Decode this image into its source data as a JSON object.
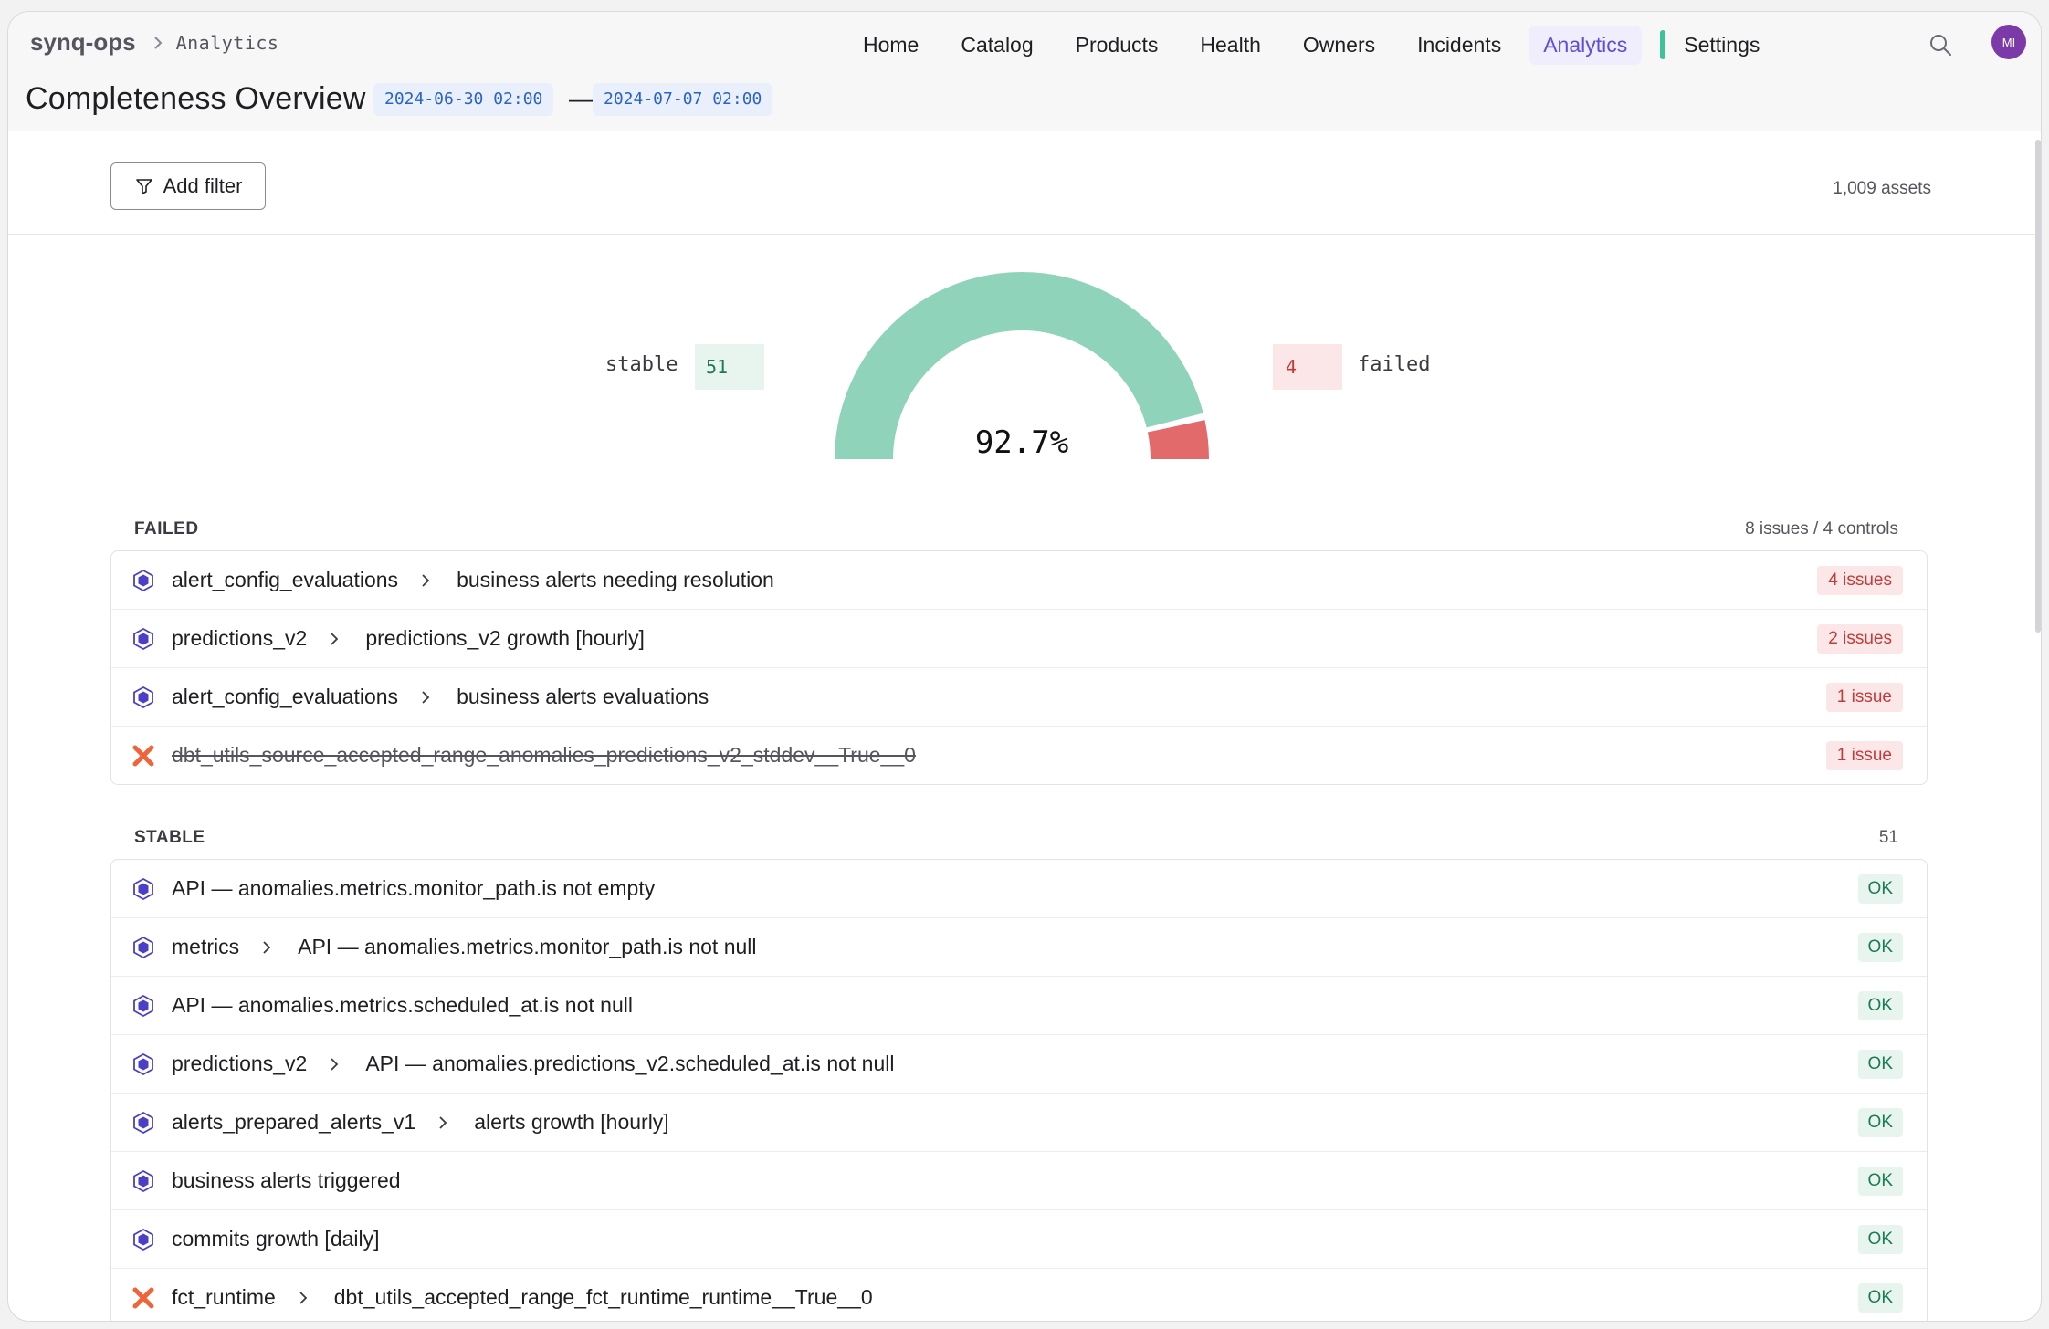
{
  "header": {
    "org": "synq-ops",
    "breadcrumb_current": "Analytics",
    "title": "Completeness Overview",
    "date_start": "2024-06-30 02:00",
    "date_separator": "—",
    "date_end": "2024-07-07 02:00",
    "avatar_initials": "MI"
  },
  "nav": {
    "home": "Home",
    "catalog": "Catalog",
    "products": "Products",
    "health": "Health",
    "owners": "Owners",
    "incidents": "Incidents",
    "analytics": "Analytics",
    "settings": "Settings"
  },
  "toolbar": {
    "add_filter": "Add filter",
    "asset_count": "1,009 assets"
  },
  "summary": {
    "stable_label": "stable",
    "stable_count": "51",
    "failed_label": "failed",
    "failed_count": "4",
    "percentage": "92.7%",
    "percentage_value": 0.927
  },
  "failed": {
    "title": "FAILED",
    "meta": "8 issues / 4 controls",
    "rows": [
      {
        "parent": "alert_config_evaluations",
        "name": "business alerts needing resolution",
        "badge": "4 issues",
        "icon": "hexagon-icon"
      },
      {
        "parent": "predictions_v2",
        "name": "predictions_v2 growth [hourly]",
        "badge": "2 issues",
        "icon": "hexagon-icon"
      },
      {
        "parent": "alert_config_evaluations",
        "name": "business alerts evaluations",
        "badge": "1 issue",
        "icon": "hexagon-icon"
      },
      {
        "name": "dbt_utils_source_accepted_range_anomalies_predictions_v2_stddev__True__0",
        "badge": "1 issue",
        "icon": "dbt-icon"
      }
    ]
  },
  "stable": {
    "title": "STABLE",
    "meta": "51",
    "rows": [
      {
        "name": "API — anomalies.metrics.monitor_path.is not empty",
        "badge": "OK",
        "icon": "hexagon-icon"
      },
      {
        "parent": "metrics",
        "name": "API — anomalies.metrics.monitor_path.is not null",
        "badge": "OK",
        "icon": "hexagon-icon"
      },
      {
        "name": "API — anomalies.metrics.scheduled_at.is not null",
        "badge": "OK",
        "icon": "hexagon-icon"
      },
      {
        "parent": "predictions_v2",
        "name": "API — anomalies.predictions_v2.scheduled_at.is not null",
        "badge": "OK",
        "icon": "hexagon-icon"
      },
      {
        "parent": "alerts_prepared_alerts_v1",
        "name": "alerts growth [hourly]",
        "badge": "OK",
        "icon": "hexagon-icon"
      },
      {
        "name": "business alerts triggered",
        "badge": "OK",
        "icon": "hexagon-icon"
      },
      {
        "name": "commits growth [daily]",
        "badge": "OK",
        "icon": "hexagon-icon"
      },
      {
        "parent": "fct_runtime",
        "name": "dbt_utils_accepted_range_fct_runtime_runtime__True__0",
        "badge": "OK",
        "icon": "dbt-icon"
      }
    ]
  },
  "colors": {
    "accent": "#5b4fd6",
    "stable": "#8fd3bb",
    "failed": "#e26a6a",
    "hexagon": "#4b3fc8",
    "dbt": "#f0643a"
  }
}
